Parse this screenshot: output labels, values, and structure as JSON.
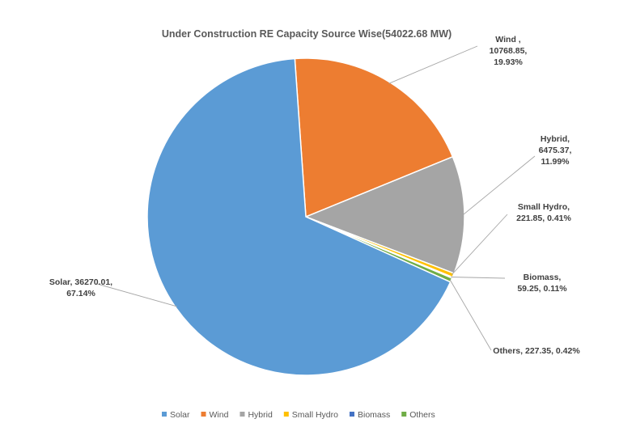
{
  "chart_data": {
    "type": "pie",
    "title": "Under Construction RE Capacity Source Wise(54022.68 MW)",
    "slices": [
      {
        "name": "Solar",
        "value": 36270.01,
        "percent": "67.14%",
        "color": "#5b9bd5",
        "label_lines": [
          "Solar, 36270.01,",
          "67.14%"
        ]
      },
      {
        "name": "Wind",
        "value": 10768.85,
        "percent": "19.93%",
        "color": "#ed7d31",
        "label_lines": [
          "Wind ,",
          "10768.85,",
          "19.93%"
        ]
      },
      {
        "name": "Hybrid",
        "value": 6475.37,
        "percent": "11.99%",
        "color": "#a5a5a5",
        "label_lines": [
          "Hybrid,",
          "6475.37,",
          "11.99%"
        ]
      },
      {
        "name": "Small Hydro",
        "value": 221.85,
        "percent": "0.41%",
        "color": "#ffc000",
        "label_lines": [
          "Small Hydro,",
          "221.85, 0.41%"
        ]
      },
      {
        "name": "Biomass",
        "value": 59.25,
        "percent": "0.11%",
        "color": "#4472c4",
        "label_lines": [
          "Biomass,",
          "59.25, 0.11%"
        ]
      },
      {
        "name": "Others",
        "value": 227.35,
        "percent": "0.42%",
        "color": "#70ad47",
        "label_lines": [
          "Others, 227.35, 0.42%"
        ]
      }
    ],
    "legend_position": "bottom"
  }
}
